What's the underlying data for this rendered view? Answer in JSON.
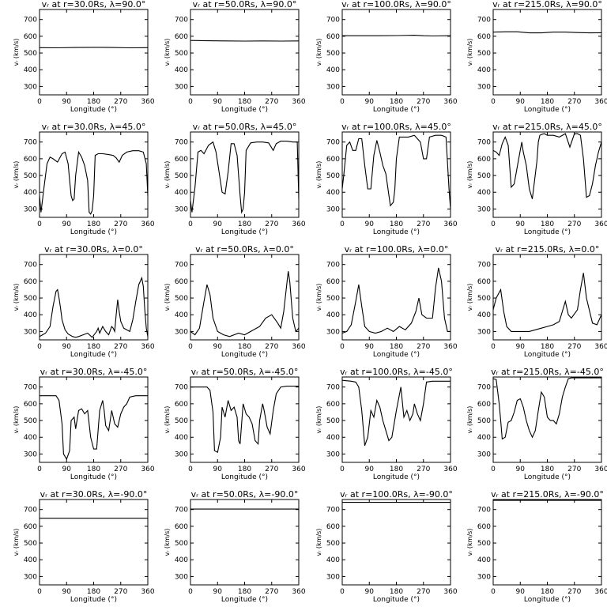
{
  "chart_data": {
    "type": "line",
    "layout": "grid 5 rows x 4 columns",
    "ticks": {
      "x": [
        "0",
        "90",
        "180",
        "270",
        "360"
      ],
      "y": [
        "300",
        "400",
        "500",
        "600",
        "700"
      ]
    },
    "xlabel": "Longitude (°)",
    "ylabel": "vᵣ (km/s)",
    "xlim": [
      0,
      360
    ],
    "ylim": [
      250,
      760
    ],
    "panels": [
      {
        "title": "vᵣ at r=30.0Rs, λ=90.0°",
        "x": [
          0,
          60,
          120,
          180,
          240,
          300,
          360
        ],
        "y": [
          532,
          531,
          533,
          534,
          533,
          531,
          532
        ]
      },
      {
        "title": "vᵣ at r=50.0Rs, λ=90.0°",
        "x": [
          0,
          60,
          120,
          180,
          240,
          300,
          360
        ],
        "y": [
          575,
          573,
          572,
          571,
          572,
          571,
          572
        ]
      },
      {
        "title": "vᵣ at r=100.0Rs, λ=90.0°",
        "x": [
          0,
          60,
          120,
          180,
          240,
          270,
          300,
          360
        ],
        "y": [
          603,
          603,
          603,
          604,
          606,
          603,
          602,
          603
        ]
      },
      {
        "title": "vᵣ at r=215.0Rs, λ=90.0°",
        "x": [
          0,
          40,
          80,
          120,
          160,
          200,
          240,
          280,
          320,
          360
        ],
        "y": [
          625,
          627,
          627,
          620,
          620,
          625,
          625,
          622,
          620,
          621
        ]
      },
      {
        "title": "vᵣ at r=30.0Rs, λ=45.0°",
        "x": [
          0,
          5,
          15,
          25,
          35,
          45,
          60,
          75,
          85,
          95,
          100,
          105,
          110,
          115,
          120,
          130,
          140,
          150,
          160,
          165,
          170,
          175,
          180,
          185,
          195,
          210,
          230,
          245,
          255,
          265,
          275,
          290,
          310,
          330,
          345,
          355,
          360
        ],
        "y": [
          380,
          280,
          430,
          570,
          610,
          600,
          580,
          630,
          640,
          570,
          470,
          380,
          350,
          360,
          500,
          640,
          610,
          560,
          470,
          280,
          270,
          290,
          380,
          620,
          630,
          630,
          625,
          620,
          605,
          580,
          620,
          640,
          648,
          648,
          640,
          570,
          380
        ]
      },
      {
        "title": "vᵣ at r=50.0Rs, λ=45.0°",
        "x": [
          0,
          5,
          15,
          25,
          35,
          45,
          60,
          75,
          85,
          95,
          105,
          115,
          125,
          135,
          145,
          155,
          165,
          170,
          175,
          180,
          185,
          200,
          220,
          240,
          260,
          275,
          285,
          300,
          320,
          340,
          355,
          360
        ],
        "y": [
          350,
          280,
          430,
          640,
          650,
          630,
          680,
          700,
          640,
          520,
          400,
          390,
          520,
          690,
          690,
          620,
          380,
          280,
          300,
          400,
          650,
          695,
          700,
          700,
          695,
          650,
          690,
          705,
          705,
          700,
          700,
          360
        ]
      },
      {
        "title": "vᵣ at r=100.0Rs, λ=45.0°",
        "x": [
          0,
          5,
          15,
          25,
          35,
          45,
          55,
          65,
          75,
          85,
          95,
          105,
          115,
          125,
          135,
          145,
          160,
          170,
          175,
          180,
          190,
          200,
          220,
          240,
          260,
          270,
          280,
          290,
          310,
          330,
          345,
          355,
          360
        ],
        "y": [
          420,
          500,
          680,
          700,
          650,
          650,
          720,
          720,
          560,
          420,
          420,
          620,
          710,
          640,
          560,
          510,
          320,
          340,
          420,
          600,
          730,
          730,
          730,
          740,
          700,
          600,
          600,
          730,
          740,
          740,
          730,
          420,
          300
        ]
      },
      {
        "title": "vᵣ at r=215.0Rs, λ=45.0°",
        "x": [
          0,
          10,
          20,
          30,
          40,
          50,
          60,
          70,
          85,
          95,
          100,
          110,
          120,
          130,
          145,
          150,
          155,
          160,
          170,
          180,
          200,
          220,
          240,
          255,
          270,
          280,
          290,
          300,
          310,
          320,
          330,
          340,
          350,
          360
        ],
        "y": [
          650,
          640,
          620,
          690,
          730,
          680,
          430,
          450,
          600,
          700,
          640,
          560,
          420,
          360,
          580,
          700,
          740,
          745,
          750,
          740,
          740,
          730,
          750,
          670,
          750,
          750,
          740,
          600,
          370,
          380,
          450,
          560,
          640,
          700
        ]
      },
      {
        "title": "vᵣ at r=30.0Rs, λ=0.0°",
        "x": [
          0,
          10,
          20,
          35,
          45,
          55,
          60,
          65,
          70,
          75,
          85,
          95,
          110,
          120,
          130,
          145,
          160,
          175,
          190,
          195,
          200,
          210,
          220,
          230,
          240,
          245,
          250,
          255,
          260,
          265,
          270,
          280,
          300,
          310,
          320,
          330,
          340,
          345,
          350,
          355,
          360
        ],
        "y": [
          270,
          280,
          290,
          330,
          450,
          540,
          550,
          500,
          440,
          370,
          310,
          285,
          270,
          265,
          270,
          280,
          290,
          265,
          300,
          320,
          290,
          330,
          300,
          280,
          330,
          320,
          300,
          400,
          490,
          420,
          360,
          320,
          300,
          370,
          480,
          580,
          620,
          570,
          430,
          320,
          270
        ]
      },
      {
        "title": "vᵣ at r=50.0Rs, λ=0.0°",
        "x": [
          0,
          15,
          30,
          45,
          55,
          65,
          75,
          90,
          110,
          130,
          160,
          180,
          200,
          230,
          250,
          270,
          290,
          300,
          310,
          320,
          325,
          330,
          340,
          350,
          360
        ],
        "y": [
          300,
          280,
          320,
          480,
          580,
          520,
          380,
          300,
          280,
          270,
          290,
          280,
          300,
          330,
          380,
          400,
          350,
          320,
          420,
          580,
          660,
          600,
          380,
          300,
          320
        ]
      },
      {
        "title": "vᵣ at r=100.0Rs, λ=0.0°",
        "x": [
          0,
          15,
          30,
          45,
          55,
          65,
          75,
          90,
          110,
          130,
          150,
          170,
          190,
          210,
          230,
          245,
          255,
          265,
          280,
          300,
          310,
          320,
          330,
          340,
          350,
          360
        ],
        "y": [
          290,
          300,
          340,
          480,
          580,
          450,
          330,
          300,
          290,
          300,
          320,
          300,
          330,
          310,
          350,
          420,
          500,
          400,
          380,
          380,
          560,
          680,
          600,
          380,
          300,
          300
        ]
      },
      {
        "title": "vᵣ at r=215.0Rs, λ=0.0°",
        "x": [
          0,
          10,
          25,
          35,
          45,
          60,
          80,
          100,
          120,
          140,
          160,
          180,
          200,
          220,
          230,
          240,
          250,
          260,
          280,
          290,
          300,
          310,
          330,
          345,
          360
        ],
        "y": [
          430,
          500,
          550,
          420,
          330,
          300,
          300,
          300,
          300,
          310,
          320,
          330,
          340,
          360,
          420,
          480,
          400,
          380,
          430,
          550,
          650,
          500,
          350,
          340,
          400
        ]
      },
      {
        "title": "vᵣ at r=30.0Rs, λ=-45.0°",
        "x": [
          0,
          40,
          55,
          65,
          75,
          80,
          90,
          100,
          105,
          115,
          120,
          130,
          140,
          150,
          160,
          170,
          180,
          190,
          200,
          210,
          215,
          220,
          230,
          240,
          250,
          260,
          270,
          280,
          290,
          300,
          320,
          360
        ],
        "y": [
          648,
          648,
          648,
          620,
          480,
          300,
          270,
          320,
          500,
          520,
          450,
          560,
          570,
          540,
          560,
          400,
          330,
          330,
          560,
          620,
          560,
          470,
          440,
          560,
          480,
          460,
          540,
          580,
          600,
          640,
          648,
          648
        ]
      },
      {
        "title": "vᵣ at r=50.0Rs, λ=-45.0°",
        "x": [
          0,
          40,
          55,
          65,
          75,
          80,
          90,
          100,
          105,
          115,
          125,
          135,
          145,
          155,
          160,
          165,
          175,
          185,
          195,
          205,
          215,
          225,
          230,
          240,
          245,
          255,
          265,
          275,
          285,
          300,
          320,
          360
        ],
        "y": [
          700,
          700,
          700,
          680,
          550,
          320,
          310,
          400,
          580,
          520,
          620,
          560,
          580,
          520,
          380,
          360,
          600,
          540,
          520,
          480,
          380,
          360,
          500,
          600,
          560,
          460,
          420,
          560,
          660,
          700,
          705,
          705
        ]
      },
      {
        "title": "vᵣ at r=100.0Rs, λ=-45.0°",
        "x": [
          0,
          30,
          45,
          55,
          65,
          75,
          85,
          95,
          105,
          115,
          125,
          135,
          145,
          155,
          165,
          180,
          195,
          205,
          215,
          225,
          235,
          240,
          250,
          260,
          270,
          280,
          300,
          330,
          360
        ],
        "y": [
          740,
          735,
          730,
          700,
          560,
          350,
          400,
          560,
          520,
          620,
          580,
          500,
          440,
          380,
          400,
          560,
          700,
          520,
          560,
          500,
          540,
          600,
          540,
          500,
          600,
          730,
          735,
          735,
          735
        ]
      },
      {
        "title": "vᵣ at r=215.0Rs, λ=-45.0°",
        "x": [
          0,
          10,
          20,
          25,
          30,
          40,
          50,
          60,
          70,
          80,
          90,
          100,
          110,
          120,
          130,
          140,
          150,
          160,
          170,
          180,
          190,
          200,
          210,
          220,
          230,
          240,
          250,
          260,
          270,
          280,
          300,
          330,
          360
        ],
        "y": [
          750,
          745,
          600,
          500,
          390,
          400,
          490,
          500,
          550,
          620,
          630,
          580,
          500,
          440,
          400,
          440,
          560,
          670,
          640,
          520,
          500,
          500,
          480,
          540,
          640,
          700,
          750,
          755,
          755,
          755,
          755,
          755,
          755
        ]
      },
      {
        "title": "vᵣ at r=30.0Rs, λ=-90.0°",
        "x": [
          0,
          180,
          360
        ],
        "y": [
          648,
          648,
          648
        ]
      },
      {
        "title": "vᵣ at r=50.0Rs, λ=-90.0°",
        "x": [
          0,
          180,
          360
        ],
        "y": [
          703,
          703,
          703
        ]
      },
      {
        "title": "vᵣ at r=100.0Rs, λ=-90.0°",
        "x": [
          0,
          180,
          360
        ],
        "y": [
          743,
          743,
          743
        ]
      },
      {
        "title": "vᵣ at r=215.0Rs, λ=-90.0°",
        "x": [
          0,
          180,
          360
        ],
        "y": [
          755,
          755,
          755
        ]
      }
    ]
  }
}
